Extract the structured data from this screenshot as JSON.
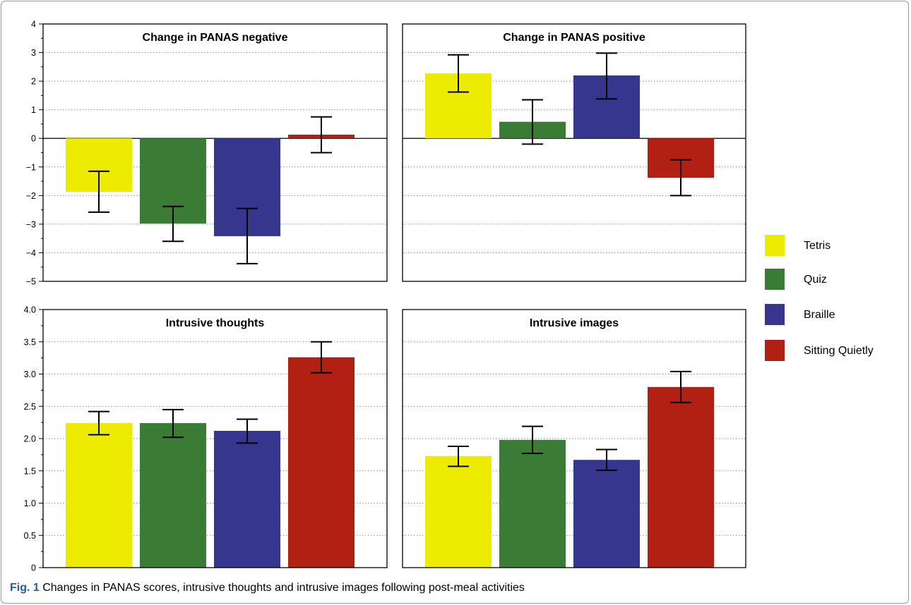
{
  "chart_data": [
    {
      "type": "bar",
      "title": "Change in PANAS negative",
      "categories": [
        "Tetris",
        "Quiz",
        "Braille",
        "Sitting Quietly"
      ],
      "values": [
        -1.87,
        -2.98,
        -3.42,
        0.13
      ],
      "error_low": [
        -2.58,
        -3.6,
        -4.38,
        -0.5
      ],
      "error_high": [
        -1.15,
        -2.38,
        -2.45,
        0.75
      ],
      "ylim": [
        -5,
        4
      ],
      "yticks": [
        "4",
        "3",
        "2",
        "1",
        "0",
        "−1",
        "−2",
        "−3",
        "−4",
        "−5"
      ],
      "grid": true
    },
    {
      "type": "bar",
      "title": "Change in PANAS positive",
      "categories": [
        "Tetris",
        "Quiz",
        "Braille",
        "Sitting Quietly"
      ],
      "values": [
        2.27,
        0.58,
        2.2,
        -1.38
      ],
      "error_low": [
        1.62,
        -0.2,
        1.38,
        -2.0
      ],
      "error_high": [
        2.92,
        1.35,
        2.98,
        -0.75
      ],
      "ylim": [
        -5,
        4
      ],
      "grid": true
    },
    {
      "type": "bar",
      "title": "Intrusive thoughts",
      "categories": [
        "Tetris",
        "Quiz",
        "Braille",
        "Sitting Quietly"
      ],
      "values": [
        2.24,
        2.24,
        2.12,
        3.26
      ],
      "error_low": [
        2.06,
        2.02,
        1.93,
        3.02
      ],
      "error_high": [
        2.42,
        2.45,
        2.3,
        3.5
      ],
      "ylim": [
        0,
        4
      ],
      "yticks": [
        "4.0",
        "3.5",
        "3.0",
        "2.5",
        "2.0",
        "1.5",
        "1.0",
        "0.5",
        "0"
      ],
      "grid": true
    },
    {
      "type": "bar",
      "title": "Intrusive images",
      "categories": [
        "Tetris",
        "Quiz",
        "Braille",
        "Sitting Quietly"
      ],
      "values": [
        1.73,
        1.98,
        1.67,
        2.8
      ],
      "error_low": [
        1.57,
        1.77,
        1.51,
        2.56
      ],
      "error_high": [
        1.88,
        2.19,
        1.83,
        3.04
      ],
      "ylim": [
        0,
        4
      ],
      "grid": true
    }
  ],
  "legend": {
    "placement": "right",
    "items": [
      {
        "label": "Tetris",
        "color": "#eceb00"
      },
      {
        "label": "Quiz",
        "color": "#3a7b35"
      },
      {
        "label": "Braille",
        "color": "#37368f"
      },
      {
        "label": "Sitting Quietly",
        "color": "#b22013"
      }
    ]
  },
  "caption": {
    "label": "Fig. 1",
    "text": " Changes in PANAS scores, intrusive thoughts and intrusive images following post-meal activities"
  }
}
